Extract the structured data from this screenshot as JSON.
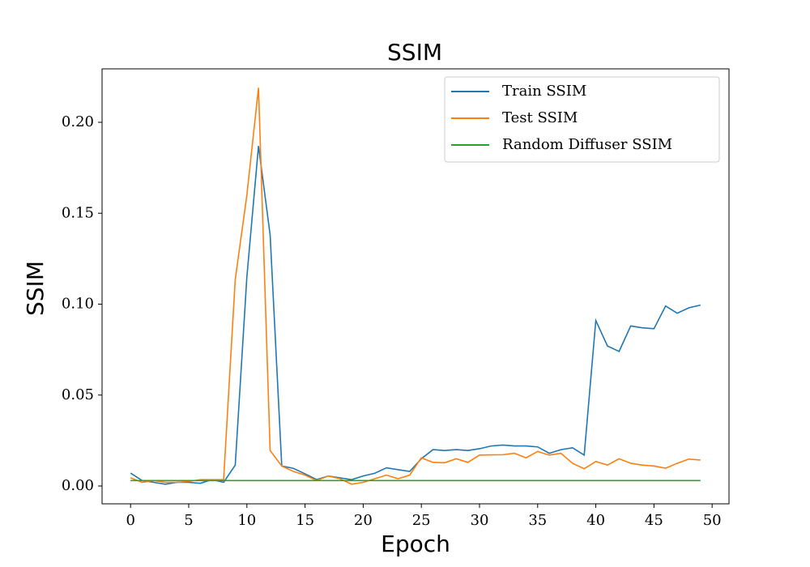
{
  "chart_data": {
    "type": "line",
    "title": "SSIM",
    "x_label": "Epoch",
    "y_label": "SSIM",
    "x": [
      0,
      1,
      2,
      3,
      4,
      5,
      6,
      7,
      8,
      9,
      10,
      11,
      12,
      13,
      14,
      15,
      16,
      17,
      18,
      19,
      20,
      21,
      22,
      23,
      24,
      25,
      26,
      27,
      28,
      29,
      30,
      31,
      32,
      33,
      34,
      35,
      36,
      37,
      38,
      39,
      40,
      41,
      42,
      43,
      44,
      45,
      46,
      47,
      48,
      49
    ],
    "series": [
      {
        "name": "Train SSIM",
        "color": "#1f77b4",
        "values": [
          0.0071,
          0.003,
          0.002,
          0.001,
          0.002,
          0.002,
          0.0015,
          0.0035,
          0.002,
          0.0115,
          0.115,
          0.187,
          0.138,
          0.011,
          0.0097,
          0.0067,
          0.0035,
          0.0055,
          0.0045,
          0.0035,
          0.0055,
          0.007,
          0.01,
          0.009,
          0.008,
          0.015,
          0.02,
          0.0195,
          0.02,
          0.0195,
          0.0205,
          0.022,
          0.0225,
          0.022,
          0.022,
          0.0215,
          0.018,
          0.02,
          0.021,
          0.017,
          0.091,
          0.077,
          0.074,
          0.088,
          0.087,
          0.0865,
          0.099,
          0.095,
          0.098,
          0.0995
        ]
      },
      {
        "name": "Test SSIM",
        "color": "#ff7f0e",
        "values": [
          0.0045,
          0.002,
          0.003,
          0.002,
          0.002,
          0.0025,
          0.0035,
          0.0035,
          0.0035,
          0.1135,
          0.16,
          0.219,
          0.0195,
          0.011,
          0.008,
          0.006,
          0.003,
          0.0055,
          0.004,
          0.001,
          0.002,
          0.004,
          0.006,
          0.004,
          0.006,
          0.0155,
          0.013,
          0.0128,
          0.015,
          0.013,
          0.017,
          0.0171,
          0.0172,
          0.018,
          0.0155,
          0.019,
          0.017,
          0.018,
          0.0125,
          0.0095,
          0.0135,
          0.0115,
          0.015,
          0.0125,
          0.0115,
          0.011,
          0.0098,
          0.0125,
          0.0148,
          0.0143
        ]
      },
      {
        "name": "Random Diffuser SSIM",
        "color": "#2ca02c",
        "values": [
          0.003,
          0.003,
          0.003,
          0.003,
          0.003,
          0.003,
          0.003,
          0.003,
          0.003,
          0.003,
          0.003,
          0.003,
          0.003,
          0.003,
          0.003,
          0.003,
          0.003,
          0.003,
          0.003,
          0.003,
          0.003,
          0.003,
          0.003,
          0.003,
          0.003,
          0.003,
          0.003,
          0.003,
          0.003,
          0.003,
          0.003,
          0.003,
          0.003,
          0.003,
          0.003,
          0.003,
          0.003,
          0.003,
          0.003,
          0.003,
          0.003,
          0.003,
          0.003,
          0.003,
          0.003,
          0.003,
          0.003,
          0.003,
          0.003,
          0.003
        ]
      }
    ],
    "xlim": [
      -2.45,
      51.45
    ],
    "xticks": [
      0,
      5,
      10,
      15,
      20,
      25,
      30,
      35,
      40,
      45,
      50
    ],
    "ylim": [
      -0.0098,
      0.2294
    ],
    "yticks": [
      {
        "value": 0,
        "label": "0.00"
      },
      {
        "value": 0.05,
        "label": "0.05"
      },
      {
        "value": 0.1,
        "label": "0.10"
      },
      {
        "value": 0.15,
        "label": "0.15"
      },
      {
        "value": 0.2,
        "label": "0.20"
      }
    ],
    "legend": "upper right"
  }
}
